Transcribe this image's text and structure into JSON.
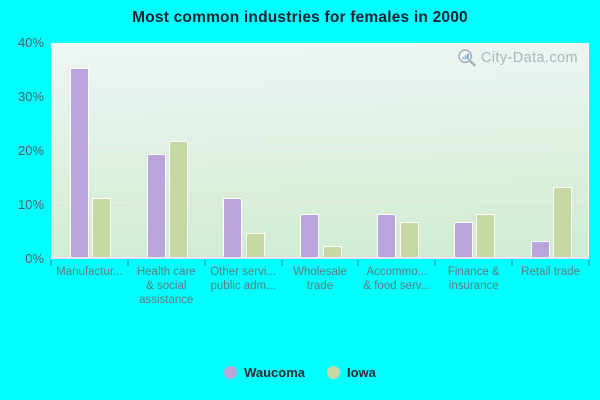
{
  "title": "Most common industries for females in 2000",
  "watermark": {
    "text": "City-Data.com"
  },
  "chart_data": {
    "type": "bar",
    "title": "Most common industries for females in 2000",
    "categories": [
      [
        "Manufactur..."
      ],
      [
        "Health care",
        "& social",
        "assistance"
      ],
      [
        "Other servi...",
        "public adm..."
      ],
      [
        "Wholesale",
        "trade"
      ],
      [
        "Accommo...",
        "& food serv..."
      ],
      [
        "Finance &",
        "insurance"
      ],
      [
        "Retail trade"
      ]
    ],
    "series": [
      {
        "name": "Waucoma",
        "color": "#b9a5d9",
        "values": [
          35,
          19,
          11,
          8,
          8,
          6.5,
          3
        ]
      },
      {
        "name": "Iowa",
        "color": "#c7d8a4",
        "values": [
          11,
          21.5,
          4.5,
          2,
          6.5,
          8,
          13
        ]
      }
    ],
    "xlabel": "",
    "ylabel": "",
    "ylim": [
      0,
      40
    ],
    "yticks": [
      {
        "label": "0%",
        "value": 0
      },
      {
        "label": "10%",
        "value": 10
      },
      {
        "label": "20%",
        "value": 20
      },
      {
        "label": "30%",
        "value": 30
      },
      {
        "label": "40%",
        "value": 40
      }
    ],
    "gridline_values": [
      10,
      20,
      30
    ],
    "grid": "horizontal",
    "legend_position": "bottom"
  },
  "legend": {
    "items": [
      {
        "label": "Waucoma",
        "color": "#b9a5d9"
      },
      {
        "label": "Iowa",
        "color": "#c7d8a4"
      }
    ]
  },
  "colors": {
    "page_background": "#00ffff",
    "waucoma_bar": "#b9a5d9",
    "iowa_bar": "#c7d8a4",
    "plot_top": "#eff5f6",
    "plot_bottom": "#cfecd2",
    "gridline": "#f0e7f0",
    "axis_label": "#4d6063",
    "category_label": "#5e7c7c",
    "title_text": "#1c2030",
    "watermark_text": "#a4aeb6"
  }
}
